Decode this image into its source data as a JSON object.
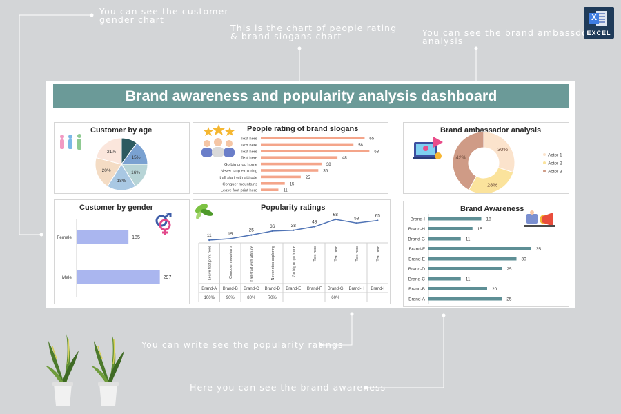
{
  "annotations": {
    "gender": "You can see the customer\ngender chart",
    "slogans": "This is the chart of people rating\n& brand slogans chart",
    "ambassador": "You can see the brand ambassdor\nanalysis",
    "popularity": "You can write see the popularity ratings",
    "awareness": "Here you can see the brand awareness"
  },
  "logo": {
    "label": "EXCEL",
    "letter": "X"
  },
  "dashboard": {
    "title": "Brand awareness and popularity analysis dashboard",
    "colors": {
      "banner": "#6b9a98",
      "salmon": "#f4a58a",
      "steel": "#5e8f95",
      "periwinkle": "#aab6ef",
      "line": "#4f73b5"
    }
  },
  "chart_data": [
    {
      "type": "pie",
      "title": "Customer by age",
      "values": [
        15,
        16,
        18,
        20,
        21,
        10
      ],
      "data_labels": [
        "15%",
        "16%",
        "18%",
        "20%",
        "21%",
        ""
      ],
      "colors": [
        "#7aa1d1",
        "#b7d4d6",
        "#a9c8e3",
        "#f4dcc4",
        "#fbe6dc",
        "#2d5a60"
      ]
    },
    {
      "type": "bar",
      "title": "People rating of brand slogans",
      "categories": [
        "Text here",
        "Text here",
        "Text here",
        "Text here",
        "Go big or go home",
        "Never stop exploring",
        "It all start with attitude",
        "Conquer mountains",
        "Leave foot print here"
      ],
      "values": [
        65,
        58,
        68,
        48,
        38,
        36,
        25,
        15,
        11
      ],
      "xlim": [
        0,
        70
      ]
    },
    {
      "type": "pie",
      "title": "Brand ambassador analysis",
      "categories": [
        "Actor 1",
        "Actor 2",
        "Actor 3"
      ],
      "values": [
        30,
        28,
        42
      ],
      "data_labels": [
        "30%",
        "28%",
        "42%"
      ],
      "colors": [
        "#fbe3cc",
        "#fbe39c",
        "#cf9b86"
      ],
      "legend": "right"
    },
    {
      "type": "bar",
      "title": "Customer by gender",
      "categories": [
        "Female",
        "Male"
      ],
      "values": [
        185,
        297
      ],
      "xlim": [
        0,
        320
      ]
    },
    {
      "type": "line",
      "title": "Popularity ratings",
      "categories": [
        "Brand-A",
        "Brand-B",
        "Brand-C",
        "Brand-D",
        "Brand-E",
        "Brand-F",
        "Brand-G",
        "Brand-H",
        "Brand-I"
      ],
      "slogans": [
        "Leave foot print here",
        "Conquer mountains",
        "It all start with attitude",
        "Never stop exploring",
        "Go big or go home",
        "Text here",
        "Text here",
        "Text here",
        "Text here"
      ],
      "values": [
        11,
        15,
        25,
        36,
        38,
        48,
        68,
        58,
        65
      ],
      "percentages": [
        "100%",
        "90%",
        "80%",
        "70%",
        "",
        "",
        "60%",
        "",
        ""
      ],
      "ylim": [
        0,
        80
      ]
    },
    {
      "type": "bar",
      "title": "Brand Awareness",
      "categories": [
        "Brand-I",
        "Brand-H",
        "Brand-G",
        "Brand-F",
        "Brand-E",
        "Brand-D",
        "Brand-C",
        "Brand-B",
        "Brand-A"
      ],
      "values": [
        18,
        15,
        11,
        35,
        30,
        25,
        11,
        20,
        25
      ],
      "xlim": [
        0,
        40
      ]
    }
  ]
}
